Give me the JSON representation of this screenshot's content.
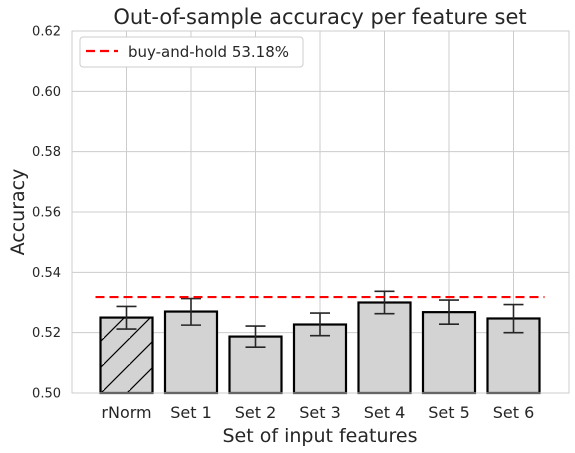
{
  "chart_data": {
    "type": "bar",
    "title": "Out-of-sample accuracy per feature set",
    "xlabel": "Set of input features",
    "ylabel": "Accuracy",
    "categories": [
      "rNorm",
      "Set 1",
      "Set 2",
      "Set 3",
      "Set 4",
      "Set 5",
      "Set 6"
    ],
    "values": [
      0.525,
      0.527,
      0.5187,
      0.5227,
      0.53,
      0.5268,
      0.5247
    ],
    "error_low": [
      0.5212,
      0.5225,
      0.5152,
      0.519,
      0.5263,
      0.5228,
      0.52
    ],
    "error_high": [
      0.5287,
      0.5313,
      0.5222,
      0.5265,
      0.5337,
      0.5308,
      0.5293
    ],
    "hatched": [
      true,
      false,
      false,
      false,
      false,
      false,
      false
    ],
    "ylim": [
      0.5,
      0.62
    ],
    "yticks": [
      "0.50",
      "0.52",
      "0.54",
      "0.56",
      "0.58",
      "0.60",
      "0.62"
    ],
    "grid": true,
    "baseline": {
      "label": "buy-and-hold 53.18%",
      "value": 0.5318,
      "color": "#ff0000",
      "style": "dashed"
    },
    "legend_position": "top-left",
    "bar_color": "#d3d3d3",
    "edge_color": "#000000",
    "grid_color": "#cccccc"
  }
}
